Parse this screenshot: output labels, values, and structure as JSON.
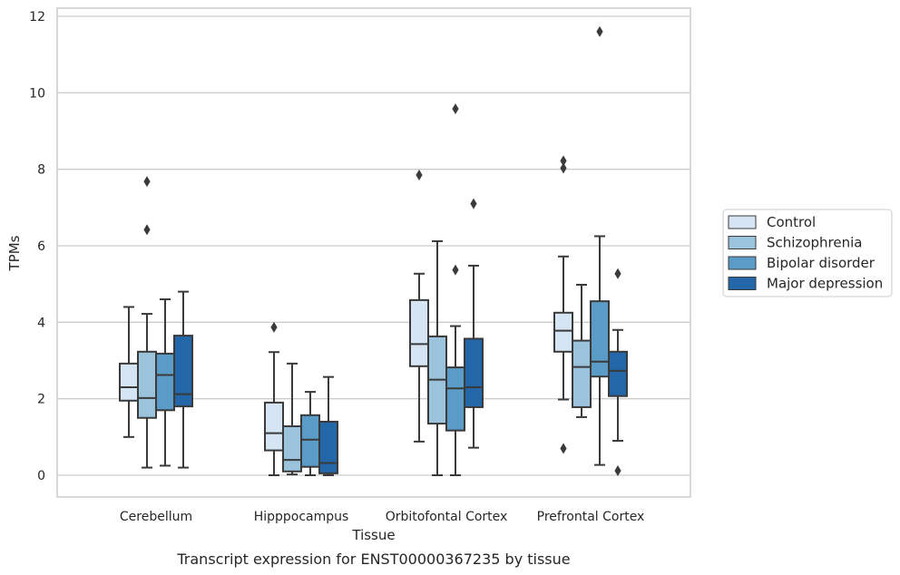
{
  "caption": "Transcript expression for ENST00000367235 by tissue",
  "chart_data": {
    "type": "box",
    "xlabel": "Tissue",
    "ylabel": "TPMs",
    "ylim": [
      -0.55,
      12.2
    ],
    "yticks": [
      0,
      2,
      4,
      6,
      8,
      10,
      12
    ],
    "grid": true,
    "legend_position": "right",
    "categories": [
      "Cerebellum",
      "Hipppocampus",
      "Orbitofontal Cortex",
      "Prefrontal Cortex"
    ],
    "series": [
      {
        "name": "Control",
        "color": "#d6e5f3",
        "boxes": [
          {
            "whisker_low": 1.0,
            "q1": 1.95,
            "median": 2.3,
            "q3": 2.92,
            "whisker_high": 4.4,
            "outliers": []
          },
          {
            "whisker_low": 0.0,
            "q1": 0.65,
            "median": 1.1,
            "q3": 1.9,
            "whisker_high": 3.22,
            "outliers": [
              3.87
            ]
          },
          {
            "whisker_low": 0.88,
            "q1": 2.85,
            "median": 3.43,
            "q3": 4.58,
            "whisker_high": 5.27,
            "outliers": [
              7.85
            ]
          },
          {
            "whisker_low": 1.98,
            "q1": 3.23,
            "median": 3.78,
            "q3": 4.25,
            "whisker_high": 5.72,
            "outliers": [
              0.7,
              8.03,
              8.22
            ]
          }
        ]
      },
      {
        "name": "Schizophrenia",
        "color": "#9bc3dc",
        "boxes": [
          {
            "whisker_low": 0.2,
            "q1": 1.5,
            "median": 2.02,
            "q3": 3.23,
            "whisker_high": 4.22,
            "outliers": [
              6.42,
              7.68
            ]
          },
          {
            "whisker_low": 0.02,
            "q1": 0.1,
            "median": 0.4,
            "q3": 1.28,
            "whisker_high": 2.92,
            "outliers": []
          },
          {
            "whisker_low": 0.0,
            "q1": 1.35,
            "median": 2.5,
            "q3": 3.63,
            "whisker_high": 6.12,
            "outliers": []
          },
          {
            "whisker_low": 1.52,
            "q1": 1.78,
            "median": 2.83,
            "q3": 3.52,
            "whisker_high": 4.98,
            "outliers": []
          }
        ]
      },
      {
        "name": "Bipolar disorder",
        "color": "#5a9bc7",
        "boxes": [
          {
            "whisker_low": 0.25,
            "q1": 1.7,
            "median": 2.62,
            "q3": 3.18,
            "whisker_high": 4.6,
            "outliers": []
          },
          {
            "whisker_low": 0.0,
            "q1": 0.22,
            "median": 0.93,
            "q3": 1.57,
            "whisker_high": 2.18,
            "outliers": []
          },
          {
            "whisker_low": 0.0,
            "q1": 1.17,
            "median": 2.27,
            "q3": 2.82,
            "whisker_high": 3.9,
            "outliers": [
              5.37,
              9.58
            ]
          },
          {
            "whisker_low": 0.27,
            "q1": 2.58,
            "median": 2.97,
            "q3": 4.55,
            "whisker_high": 6.25,
            "outliers": [
              11.6
            ]
          }
        ]
      },
      {
        "name": "Major depression",
        "color": "#2367a8",
        "boxes": [
          {
            "whisker_low": 0.2,
            "q1": 1.8,
            "median": 2.12,
            "q3": 3.65,
            "whisker_high": 4.8,
            "outliers": []
          },
          {
            "whisker_low": 0.0,
            "q1": 0.05,
            "median": 0.32,
            "q3": 1.4,
            "whisker_high": 2.57,
            "outliers": []
          },
          {
            "whisker_low": 0.72,
            "q1": 1.78,
            "median": 2.3,
            "q3": 3.57,
            "whisker_high": 5.48,
            "outliers": [
              7.1
            ]
          },
          {
            "whisker_low": 0.9,
            "q1": 2.07,
            "median": 2.73,
            "q3": 3.23,
            "whisker_high": 3.8,
            "outliers": [
              0.12,
              5.27
            ]
          }
        ]
      }
    ]
  }
}
